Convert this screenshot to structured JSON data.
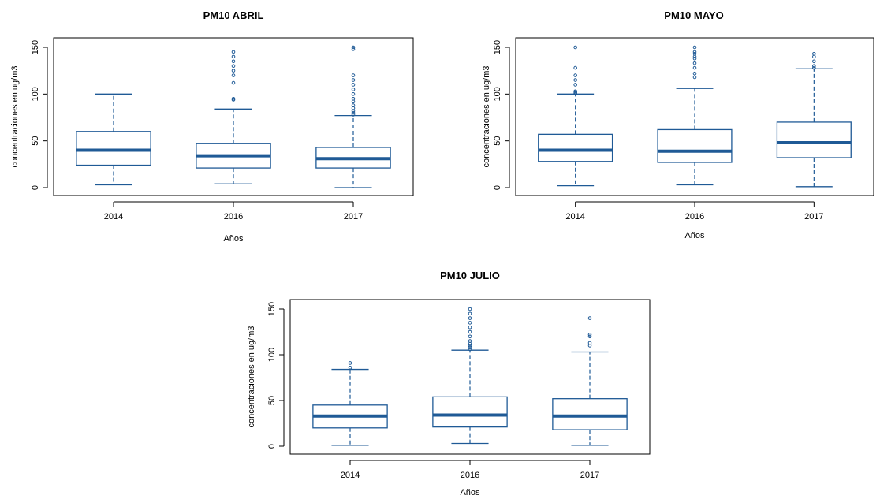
{
  "figure": {
    "accent_color": "#1f5a96"
  },
  "chart_data": [
    {
      "type": "box",
      "title": "PM10 ABRIL",
      "xlabel": "Años",
      "ylabel": "concentraciones en ug/m3",
      "ylim": [
        0,
        150
      ],
      "yticks": [
        0,
        50,
        100,
        150
      ],
      "grid": false,
      "categories": [
        "2014",
        "2016",
        "2017"
      ],
      "boxes": [
        {
          "min": 3,
          "q1": 24,
          "median": 40,
          "q3": 60,
          "max": 100,
          "outliers": []
        },
        {
          "min": 4,
          "q1": 21,
          "median": 34,
          "q3": 47,
          "max": 84,
          "outliers": [
            94,
            95,
            112,
            120,
            125,
            130,
            135,
            140,
            145
          ]
        },
        {
          "min": 0,
          "q1": 21,
          "median": 31,
          "q3": 43,
          "max": 77,
          "outliers": [
            78,
            80,
            82,
            85,
            88,
            92,
            95,
            100,
            105,
            110,
            115,
            120,
            148,
            150
          ]
        }
      ]
    },
    {
      "type": "box",
      "title": "PM10 MAYO",
      "xlabel": "Años",
      "ylabel": "concentraciones en ug/m3",
      "ylim": [
        0,
        150
      ],
      "yticks": [
        0,
        50,
        100,
        150
      ],
      "grid": false,
      "categories": [
        "2014",
        "2016",
        "2017"
      ],
      "boxes": [
        {
          "min": 2,
          "q1": 28,
          "median": 40,
          "q3": 57,
          "max": 100,
          "outliers": [
            101,
            102,
            103,
            110,
            115,
            120,
            128,
            150
          ]
        },
        {
          "min": 3,
          "q1": 27,
          "median": 39,
          "q3": 62,
          "max": 106,
          "outliers": [
            118,
            122,
            128,
            133,
            138,
            140,
            143,
            145,
            150
          ]
        },
        {
          "min": 1,
          "q1": 32,
          "median": 48,
          "q3": 70,
          "max": 127,
          "outliers": [
            128,
            130,
            135,
            140,
            143
          ]
        }
      ]
    },
    {
      "type": "box",
      "title": "PM10 JULIO",
      "xlabel": "Años",
      "ylabel": "concentraciones en ug/m3",
      "ylim": [
        0,
        150
      ],
      "yticks": [
        0,
        50,
        100,
        150
      ],
      "grid": false,
      "categories": [
        "2014",
        "2016",
        "2017"
      ],
      "boxes": [
        {
          "min": 1,
          "q1": 20,
          "median": 33,
          "q3": 45,
          "max": 84,
          "outliers": [
            86,
            91
          ]
        },
        {
          "min": 3,
          "q1": 21,
          "median": 34,
          "q3": 54,
          "max": 105,
          "outliers": [
            106,
            108,
            110,
            112,
            115,
            120,
            125,
            130,
            135,
            140,
            145,
            150
          ]
        },
        {
          "min": 1,
          "q1": 18,
          "median": 33,
          "q3": 52,
          "max": 103,
          "outliers": [
            110,
            113,
            120,
            122,
            140
          ]
        }
      ]
    }
  ]
}
